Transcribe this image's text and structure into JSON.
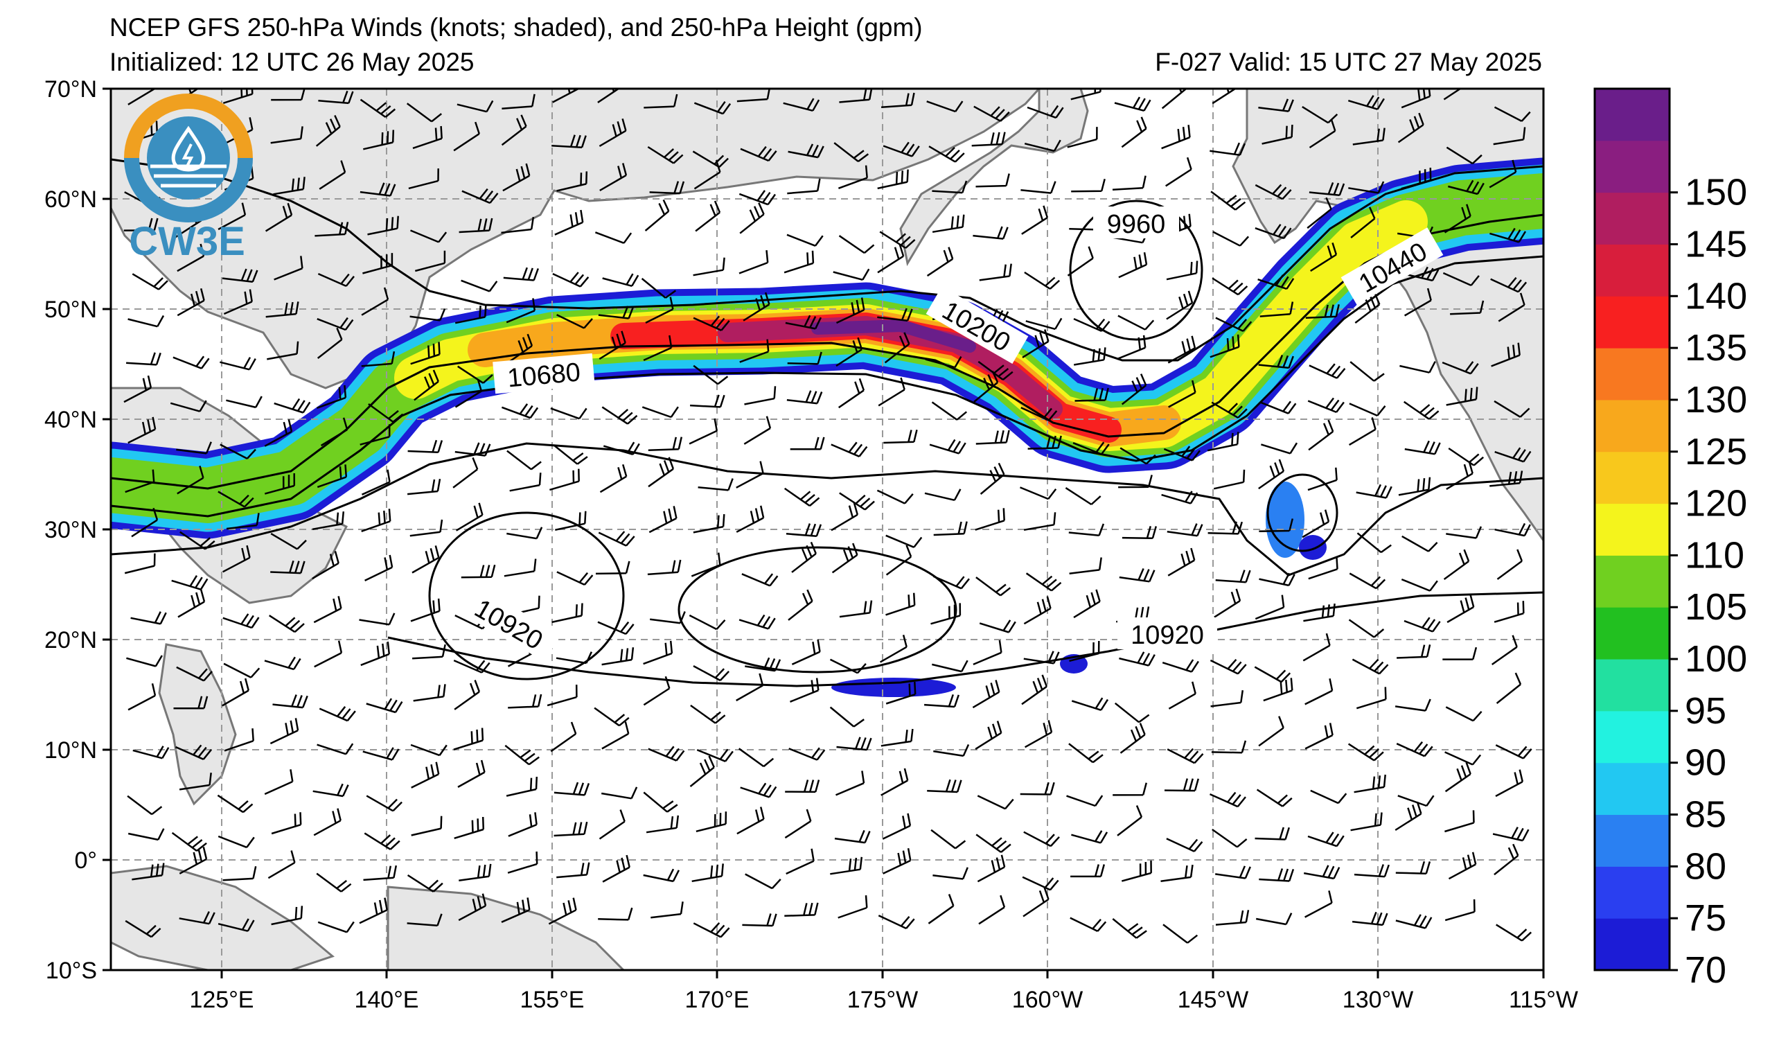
{
  "header": {
    "title": "NCEP GFS 250-hPa Winds (knots; shaded), and 250-hPa Height (gpm)",
    "initialized": "Initialized: 12 UTC 26 May 2025",
    "valid": "F-027  Valid: 15 UTC 27 May 2025"
  },
  "logo": {
    "text": "CW3E",
    "icon": "water-drop-lightning-icon",
    "color": "#3a8fc0",
    "accent": "#f0a020"
  },
  "axes": {
    "lat_labels": [
      "70°N",
      "60°N",
      "50°N",
      "40°N",
      "30°N",
      "20°N",
      "10°N",
      "0°",
      "10°S"
    ],
    "lon_labels": [
      "125°E",
      "140°E",
      "155°E",
      "170°E",
      "175°W",
      "160°W",
      "145°W",
      "130°W",
      "115°W"
    ]
  },
  "colorbar": {
    "labels": [
      "70",
      "75",
      "80",
      "85",
      "90",
      "95",
      "100",
      "105",
      "110",
      "120",
      "125",
      "130",
      "135",
      "140",
      "145",
      "150"
    ],
    "colors": [
      "#1c1cd6",
      "#2a3ff0",
      "#2a80f2",
      "#22c8f2",
      "#22f2e0",
      "#22e0a0",
      "#22c020",
      "#70d020",
      "#f4f41c",
      "#f8c81c",
      "#f8a81c",
      "#f87820",
      "#f82020",
      "#d81e3c",
      "#b01e60",
      "#8a1e80",
      "#6a1e8a"
    ]
  },
  "contours": [
    {
      "label": "9960"
    },
    {
      "label": "10200"
    },
    {
      "label": "10440"
    },
    {
      "label": "10680"
    },
    {
      "label": "10920"
    },
    {
      "label": "10920"
    }
  ]
}
